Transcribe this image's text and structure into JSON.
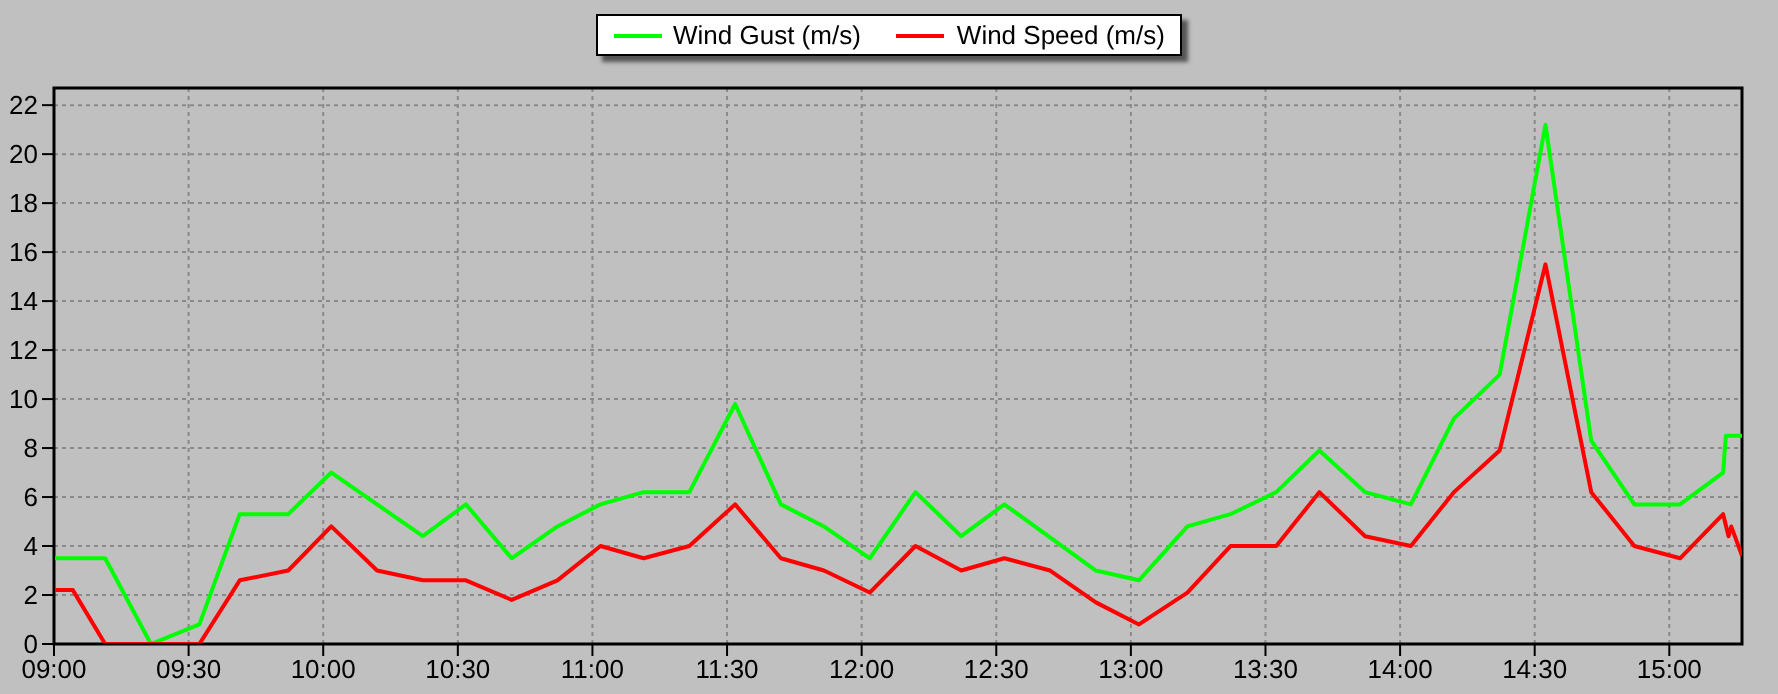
{
  "chart_data": {
    "type": "line",
    "xlim": [
      9,
      15.27
    ],
    "ylim": [
      0,
      22.7
    ],
    "xticks": [
      {
        "value": 9,
        "label": "09:00"
      },
      {
        "value": 9.5,
        "label": "09:30"
      },
      {
        "value": 10,
        "label": "10:00"
      },
      {
        "value": 10.5,
        "label": "10:30"
      },
      {
        "value": 11,
        "label": "11:00"
      },
      {
        "value": 11.5,
        "label": "11:30"
      },
      {
        "value": 12,
        "label": "12:00"
      },
      {
        "value": 12.5,
        "label": "12:30"
      },
      {
        "value": 13,
        "label": "13:00"
      },
      {
        "value": 13.5,
        "label": "13:30"
      },
      {
        "value": 14,
        "label": "14:00"
      },
      {
        "value": 14.5,
        "label": "14:30"
      },
      {
        "value": 15,
        "label": "15:00"
      }
    ],
    "yticks": [
      0,
      2,
      4,
      6,
      8,
      10,
      12,
      14,
      16,
      18,
      20,
      22
    ],
    "grid": true,
    "legend": "top",
    "marker": "none",
    "line_style": "solid",
    "series": [
      {
        "name": "Wind Gust (m/s)",
        "color": "#00ff00",
        "x": [
          9.0,
          9.19,
          9.36,
          9.54,
          9.69,
          9.87,
          10.03,
          10.2,
          10.37,
          10.53,
          10.7,
          10.87,
          11.03,
          11.19,
          11.36,
          11.53,
          11.7,
          11.86,
          12.03,
          12.2,
          12.37,
          12.53,
          12.87,
          13.03,
          13.21,
          13.37,
          13.54,
          13.7,
          13.87,
          14.04,
          14.2,
          14.37,
          14.54,
          14.71,
          14.87,
          15.04,
          15.2,
          15.21,
          15.27
        ],
        "values": [
          3.5,
          3.5,
          0,
          0.8,
          5.3,
          5.3,
          7,
          5.7,
          4.4,
          5.7,
          3.5,
          4.8,
          5.7,
          6.2,
          6.2,
          9.8,
          5.7,
          4.8,
          3.5,
          6.2,
          4.4,
          5.7,
          3.0,
          2.6,
          4.8,
          5.3,
          6.2,
          7.9,
          6.2,
          5.7,
          9.2,
          11.0,
          21.2,
          8.3,
          5.7,
          5.7,
          7.0,
          8.5,
          8.5
        ]
      },
      {
        "name": "Wind Speed (m/s)",
        "color": "#ff0000",
        "x": [
          9.0,
          9.07,
          9.19,
          9.36,
          9.54,
          9.69,
          9.87,
          10.03,
          10.2,
          10.37,
          10.53,
          10.7,
          10.87,
          11.03,
          11.19,
          11.36,
          11.53,
          11.7,
          11.86,
          12.03,
          12.2,
          12.37,
          12.53,
          12.7,
          12.87,
          13.03,
          13.21,
          13.37,
          13.54,
          13.7,
          13.87,
          14.04,
          14.2,
          14.37,
          14.54,
          14.71,
          14.87,
          15.04,
          15.2,
          15.22,
          15.23,
          15.27
        ],
        "values": [
          2.2,
          2.2,
          0,
          0,
          0,
          2.6,
          3.0,
          4.8,
          3.0,
          2.6,
          2.6,
          1.8,
          2.6,
          4.0,
          3.5,
          4.0,
          5.7,
          3.5,
          3.0,
          2.1,
          4.0,
          3.0,
          3.5,
          3.0,
          1.7,
          0.8,
          2.1,
          4.0,
          4.0,
          6.2,
          4.4,
          4.0,
          6.2,
          7.9,
          15.5,
          6.2,
          4.0,
          3.5,
          5.3,
          4.4,
          4.8,
          3.6
        ]
      }
    ]
  }
}
